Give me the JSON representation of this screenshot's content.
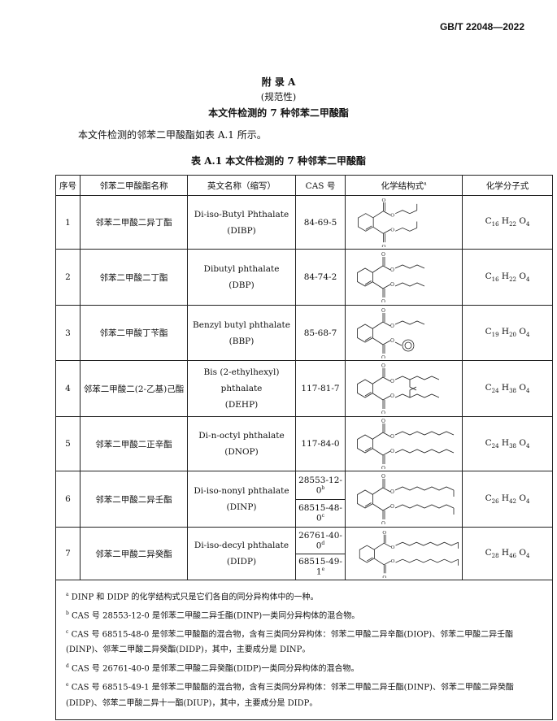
{
  "header": {
    "standard_no": "GB/T 22048—2022"
  },
  "appendix": {
    "title": "附 录 A",
    "type": "(规范性)",
    "heading": "本文件检测的 7 种邻苯二甲酸酯"
  },
  "intro": "本文件检测的邻苯二甲酸酯如表 A.1 所示。",
  "table": {
    "caption": "表 A.1  本文件检测的 7 种邻苯二甲酸酯",
    "headers": [
      "序号",
      "邻苯二甲酸酯名称",
      "英文名称（缩写）",
      "CAS 号",
      "化学结构式",
      "化学分子式"
    ],
    "header_note": "a",
    "rows": [
      {
        "no": "1",
        "cn": "邻苯二甲酸二异丁酯",
        "en": "Di-iso-Butyl Phthalate",
        "abbr": "(DIBP)",
        "cas": [
          "84-69-5"
        ],
        "formula": {
          "C": "16",
          "H": "22",
          "O": "4"
        }
      },
      {
        "no": "2",
        "cn": "邻苯二甲酸二丁酯",
        "en": "Dibutyl phthalate",
        "abbr": "(DBP)",
        "cas": [
          "84-74-2"
        ],
        "formula": {
          "C": "16",
          "H": "22",
          "O": "4"
        }
      },
      {
        "no": "3",
        "cn": "邻苯二甲酸丁苄酯",
        "en": "Benzyl butyl phthalate",
        "abbr": "(BBP)",
        "cas": [
          "85-68-7"
        ],
        "formula": {
          "C": "19",
          "H": "20",
          "O": "4"
        }
      },
      {
        "no": "4",
        "cn": "邻苯二甲酸二(2-乙基)己酯",
        "en": "Bis (2-ethylhexyl) phthalate",
        "abbr": "(DEHP)",
        "cas": [
          "117-81-7"
        ],
        "formula": {
          "C": "24",
          "H": "38",
          "O": "4"
        }
      },
      {
        "no": "5",
        "cn": "邻苯二甲酸二正辛酯",
        "en": "Di-n-octyl phthalate",
        "abbr": "(DNOP)",
        "cas": [
          "117-84-0"
        ],
        "formula": {
          "C": "24",
          "H": "38",
          "O": "4"
        }
      },
      {
        "no": "6",
        "cn": "邻苯二甲酸二异壬酯",
        "en": "Di-iso-nonyl phthalate",
        "abbr": "(DINP)",
        "cas": [
          "28553-12-0",
          "68515-48-0"
        ],
        "cas_notes": [
          "b",
          "c"
        ],
        "formula": {
          "C": "26",
          "H": "42",
          "O": "4"
        }
      },
      {
        "no": "7",
        "cn": "邻苯二甲酸二异癸酯",
        "en": "Di-iso-decyl phthalate",
        "abbr": "(DIDP)",
        "cas": [
          "26761-40-0",
          "68515-49-1"
        ],
        "cas_notes": [
          "d",
          "e"
        ],
        "formula": {
          "C": "28",
          "H": "46",
          "O": "4"
        }
      }
    ],
    "footnotes": [
      {
        "mark": "a",
        "text": "DINP 和 DIDP 的化学结构式只是它们各自的同分异构体中的一种。"
      },
      {
        "mark": "b",
        "text": "CAS 号 28553-12-0 是邻苯二甲酸二异壬酯(DINP)一类同分异构体的混合物。"
      },
      {
        "mark": "c",
        "text": "CAS 号 68515-48-0 是邻苯二甲酸酯的混合物，含有三类同分异构体：邻苯二甲酸二异辛酯(DIOP)、邻苯二甲酸二异壬酯(DINP)、邻苯二甲酸二异癸酯(DIDP)，其中，主要成分是 DINP。"
      },
      {
        "mark": "d",
        "text": "CAS 号 26761-40-0 是邻苯二甲酸二异癸酯(DIDP)一类同分异构体的混合物。"
      },
      {
        "mark": "e",
        "text": "CAS 号 68515-49-1 是邻苯二甲酸酯的混合物，含有三类同分异构体：邻苯二甲酸二异壬酯(DINP)、邻苯二甲酸二异癸酯(DIDP)、邻苯二甲酸二异十一酯(DIUP)，其中，主要成分是 DIDP。"
      }
    ]
  },
  "structure_labels": {
    "oxygen": "O"
  }
}
